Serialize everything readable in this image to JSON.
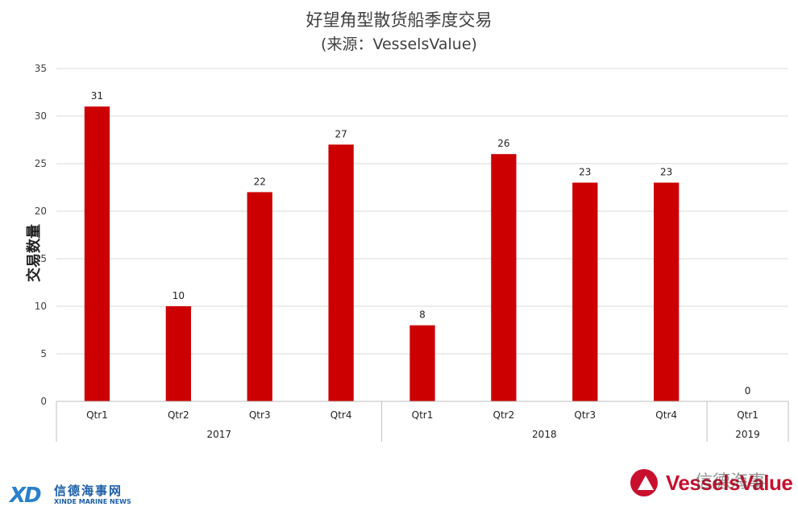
{
  "chart_data": {
    "type": "bar",
    "title": "好望角型散货船季度交易",
    "subtitle": "(来源：VesselsValue)",
    "ylabel": "交易数量",
    "ylim": [
      0,
      35
    ],
    "yticks": [
      0,
      5,
      10,
      15,
      20,
      25,
      30,
      35
    ],
    "grid": true,
    "bar_color": "#cc0000",
    "groups": [
      {
        "label": "2017",
        "categories": [
          "Qtr1",
          "Qtr2",
          "Qtr3",
          "Qtr4"
        ],
        "values": [
          31,
          10,
          22,
          27
        ]
      },
      {
        "label": "2018",
        "categories": [
          "Qtr1",
          "Qtr2",
          "Qtr3",
          "Qtr4"
        ],
        "values": [
          8,
          26,
          23,
          23
        ]
      },
      {
        "label": "2019",
        "categories": [
          "Qtr1"
        ],
        "values": [
          0
        ]
      }
    ]
  },
  "logos": {
    "left_mark": "XD",
    "left_cn": "信德海事网",
    "left_en": "XINDE MARINE NEWS",
    "right_brand": "VesselsValue",
    "watermark": "信德海事"
  },
  "colors": {
    "bar": "#cc0000",
    "grid": "#d9d9d9",
    "axis": "#bfbfbf",
    "brand_red": "#c8102e",
    "brand_blue": "#1c5fa8"
  }
}
